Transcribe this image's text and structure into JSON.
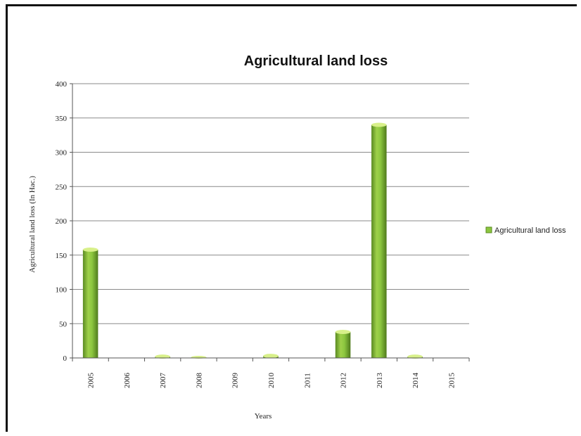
{
  "chart_data": {
    "type": "bar",
    "title": "Agricultural land loss",
    "xlabel": "Years",
    "ylabel": "Agricultural land loss (In Hac.)",
    "categories": [
      "2005",
      "2006",
      "2007",
      "2008",
      "2009",
      "2010",
      "2011",
      "2012",
      "2013",
      "2014",
      "2015"
    ],
    "series": [
      {
        "name": "Agricultural land loss",
        "values": [
          158,
          0,
          2,
          1,
          0,
          3,
          0,
          38,
          340,
          2,
          0
        ]
      }
    ],
    "ylim": [
      0,
      400
    ],
    "yticks": [
      0,
      50,
      100,
      150,
      200,
      250,
      300,
      350,
      400
    ],
    "grid": true,
    "legend_position": "right",
    "colors": {
      "bar": "#8cc63f",
      "bar_dark": "#5a8a22",
      "bar_top": "#d8f08a",
      "grid": "#8a8a8a",
      "axis": "#555555"
    }
  }
}
